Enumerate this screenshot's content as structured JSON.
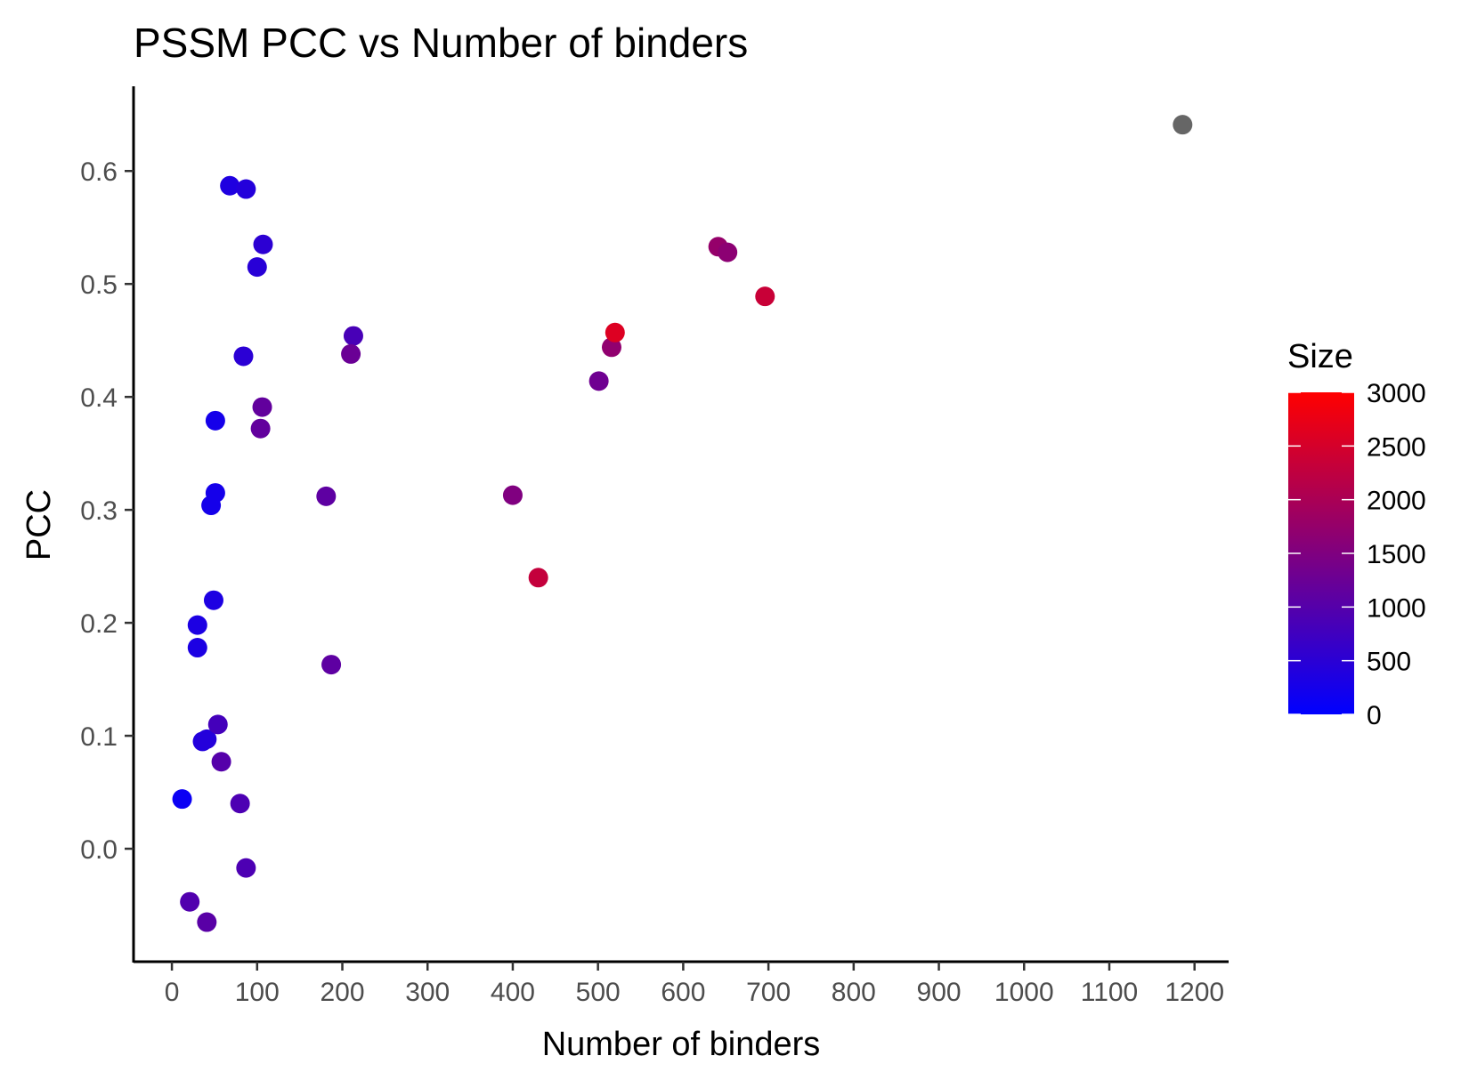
{
  "chart_data": {
    "type": "scatter",
    "title": "PSSM PCC vs Number of binders",
    "xlabel": "Number of binders",
    "ylabel": "PCC",
    "xlim": [
      -45,
      1240
    ],
    "ylim": [
      -0.1,
      0.675
    ],
    "x_ticks": [
      0,
      100,
      200,
      300,
      400,
      500,
      600,
      700,
      800,
      900,
      1000,
      1100,
      1200
    ],
    "x_tick_labels": [
      "0",
      "100",
      "200",
      "300",
      "400",
      "500",
      "600",
      "700",
      "800",
      "900",
      "1000",
      "1100",
      "1200"
    ],
    "y_ticks": [
      0.0,
      0.1,
      0.2,
      0.3,
      0.4,
      0.5,
      0.6
    ],
    "y_tick_labels": [
      "0.0",
      "0.1",
      "0.2",
      "0.3",
      "0.4",
      "0.5",
      "0.6"
    ],
    "grid": false,
    "legend": {
      "title": "Size",
      "placement": "right",
      "type": "colorbar",
      "range": [
        0,
        3000
      ],
      "ticks": [
        0,
        500,
        1000,
        1500,
        2000,
        2500,
        3000
      ],
      "tick_labels": [
        "0",
        "500",
        "1000",
        "1500",
        "2000",
        "2500",
        "3000"
      ],
      "low_color": "#0000FF",
      "high_color": "#FF0000",
      "na_color": "#666666"
    },
    "points": [
      {
        "x": 68,
        "y": 0.587,
        "size": 360
      },
      {
        "x": 87,
        "y": 0.584,
        "size": 420
      },
      {
        "x": 107,
        "y": 0.535,
        "size": 520
      },
      {
        "x": 100,
        "y": 0.515,
        "size": 470
      },
      {
        "x": 84,
        "y": 0.436,
        "size": 500
      },
      {
        "x": 51,
        "y": 0.379,
        "size": 250
      },
      {
        "x": 51,
        "y": 0.315,
        "size": 250
      },
      {
        "x": 46,
        "y": 0.304,
        "size": 250
      },
      {
        "x": 49,
        "y": 0.22,
        "size": 340
      },
      {
        "x": 30,
        "y": 0.198,
        "size": 330
      },
      {
        "x": 30,
        "y": 0.178,
        "size": 330
      },
      {
        "x": 12,
        "y": 0.044,
        "size": 130
      },
      {
        "x": 36,
        "y": 0.095,
        "size": 400
      },
      {
        "x": 41,
        "y": 0.097,
        "size": 420
      },
      {
        "x": 54,
        "y": 0.11,
        "size": 800
      },
      {
        "x": 58,
        "y": 0.077,
        "size": 1000
      },
      {
        "x": 80,
        "y": 0.04,
        "size": 900
      },
      {
        "x": 87,
        "y": -0.017,
        "size": 900
      },
      {
        "x": 21,
        "y": -0.047,
        "size": 950
      },
      {
        "x": 41,
        "y": -0.065,
        "size": 1050
      },
      {
        "x": 106,
        "y": 0.391,
        "size": 1150
      },
      {
        "x": 104,
        "y": 0.372,
        "size": 1150
      },
      {
        "x": 181,
        "y": 0.312,
        "size": 1100
      },
      {
        "x": 187,
        "y": 0.163,
        "size": 1100
      },
      {
        "x": 213,
        "y": 0.454,
        "size": 850
      },
      {
        "x": 210,
        "y": 0.438,
        "size": 1250
      },
      {
        "x": 400,
        "y": 0.313,
        "size": 1500
      },
      {
        "x": 430,
        "y": 0.24,
        "size": 2300
      },
      {
        "x": 501,
        "y": 0.414,
        "size": 1300
      },
      {
        "x": 516,
        "y": 0.444,
        "size": 1700
      },
      {
        "x": 520,
        "y": 0.457,
        "size": 2600
      },
      {
        "x": 641,
        "y": 0.533,
        "size": 1750
      },
      {
        "x": 652,
        "y": 0.528,
        "size": 1650
      },
      {
        "x": 696,
        "y": 0.489,
        "size": 2350
      },
      {
        "x": 1186,
        "y": 0.641,
        "size": null
      }
    ]
  }
}
